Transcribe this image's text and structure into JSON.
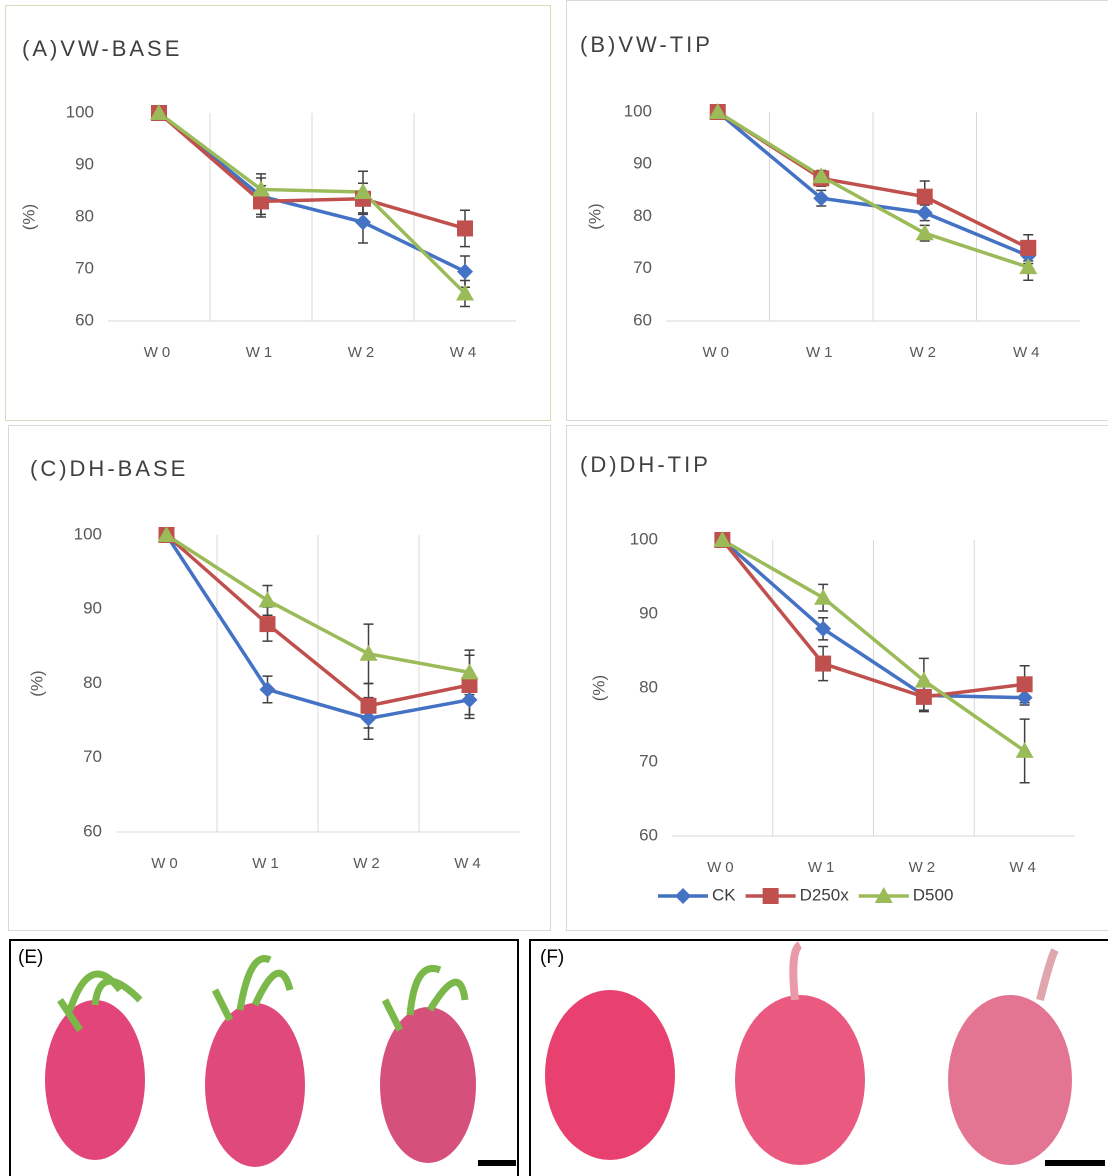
{
  "chart_data": [
    {
      "type": "line",
      "title": "(A)VW-BASE",
      "y_label": "(%)",
      "categories": [
        "W0",
        "W1",
        "W2",
        "W4"
      ],
      "ylim": [
        60,
        100
      ],
      "yticks": [
        60,
        70,
        80,
        90,
        100
      ],
      "grid": "x",
      "series": [
        {
          "name": "CK",
          "color": "#4472c4",
          "marker": "diamond",
          "values": [
            100,
            84,
            79,
            69.5
          ],
          "errors": [
            0,
            3.5,
            4,
            3
          ]
        },
        {
          "name": "D250x",
          "color": "#c0504d",
          "marker": "square",
          "values": [
            100,
            83,
            83.5,
            77.8
          ],
          "errors": [
            0,
            3,
            3,
            3.5
          ]
        },
        {
          "name": "D500",
          "color": "#9bbb59",
          "marker": "triangle",
          "values": [
            100,
            85.3,
            84.8,
            65.3
          ],
          "errors": [
            0,
            3,
            4,
            2.5
          ]
        }
      ]
    },
    {
      "type": "line",
      "title": "(B)VW-TIP",
      "y_label": "(%)",
      "categories": [
        "W0",
        "W1",
        "W2",
        "W4"
      ],
      "ylim": [
        60,
        100
      ],
      "yticks": [
        60,
        70,
        80,
        90,
        100
      ],
      "grid": "x",
      "series": [
        {
          "name": "CK",
          "color": "#4472c4",
          "marker": "diamond",
          "values": [
            100,
            83.5,
            80.7,
            72.5
          ],
          "errors": [
            0,
            1.5,
            1.5,
            1.5
          ]
        },
        {
          "name": "D250x",
          "color": "#c0504d",
          "marker": "square",
          "values": [
            100,
            87.3,
            83.8,
            74
          ],
          "errors": [
            0,
            1.5,
            3,
            2.5
          ]
        },
        {
          "name": "D500",
          "color": "#9bbb59",
          "marker": "triangle",
          "values": [
            100,
            87.7,
            76.8,
            70.3
          ],
          "errors": [
            0,
            1,
            1.5,
            2.5
          ]
        }
      ]
    },
    {
      "type": "line",
      "title": "(C)DH-BASE",
      "y_label": "(%)",
      "categories": [
        "W0",
        "W1",
        "W2",
        "W4"
      ],
      "ylim": [
        60,
        100
      ],
      "yticks": [
        60,
        70,
        80,
        90,
        100
      ],
      "grid": "x",
      "series": [
        {
          "name": "CK",
          "color": "#4472c4",
          "marker": "diamond",
          "values": [
            100,
            79.2,
            75.3,
            77.8
          ],
          "errors": [
            0,
            1.8,
            2.8,
            2.5
          ]
        },
        {
          "name": "D250x",
          "color": "#c0504d",
          "marker": "square",
          "values": [
            100,
            88,
            77,
            79.8
          ],
          "errors": [
            0,
            2.3,
            3,
            4
          ]
        },
        {
          "name": "D500",
          "color": "#9bbb59",
          "marker": "triangle",
          "values": [
            100,
            91.2,
            84,
            81.5
          ],
          "errors": [
            0,
            2,
            4,
            3
          ]
        }
      ]
    },
    {
      "type": "line",
      "title": "(D)DH-TIP",
      "y_label": "(%)",
      "categories": [
        "W0",
        "W1",
        "W2",
        "W4"
      ],
      "ylim": [
        60,
        100
      ],
      "yticks": [
        60,
        70,
        80,
        90,
        100
      ],
      "grid": "x",
      "legend": "bottom",
      "series": [
        {
          "name": "CK",
          "color": "#4472c4",
          "marker": "diamond",
          "values": [
            100,
            88,
            79,
            78.7
          ],
          "errors": [
            0,
            1.5,
            2,
            1
          ]
        },
        {
          "name": "D250x",
          "color": "#c0504d",
          "marker": "square",
          "values": [
            100,
            83.3,
            78.8,
            80.5
          ],
          "errors": [
            0,
            2.3,
            2,
            2.5
          ]
        },
        {
          "name": "D500",
          "color": "#9bbb59",
          "marker": "triangle",
          "values": [
            100,
            92.2,
            81,
            71.5
          ],
          "errors": [
            0,
            1.8,
            3,
            4.3
          ]
        }
      ]
    }
  ],
  "photos": [
    {
      "label": "(E)"
    },
    {
      "label": "(F)"
    }
  ]
}
